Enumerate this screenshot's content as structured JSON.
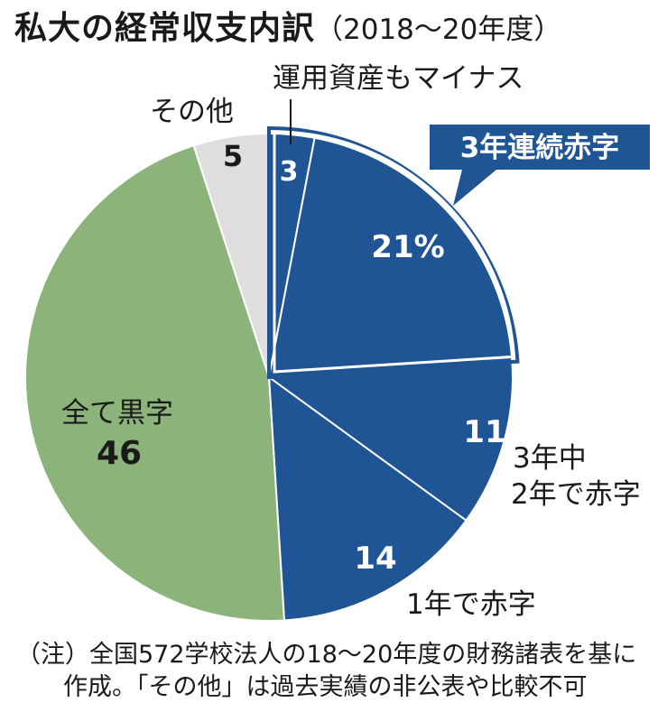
{
  "title": "私大の経常収支内訳",
  "subtitle": "（2018〜20年度）",
  "chart_data": {
    "type": "pie",
    "unit": "%",
    "slices": [
      {
        "label": "運用資産もマイナス",
        "value": 3,
        "value_label": "3",
        "group": "3年連続赤字",
        "color": "#1f5495"
      },
      {
        "label": "",
        "value": 21,
        "value_label": "21%",
        "group": "3年連続赤字",
        "color": "#1f5495"
      },
      {
        "label": "3年中2年で赤字",
        "value": 11,
        "value_label": "11",
        "color": "#1f5495"
      },
      {
        "label": "1年で赤字",
        "value": 14,
        "value_label": "14",
        "color": "#1f5495"
      },
      {
        "label": "全て黒字",
        "value": 46,
        "value_label": "46",
        "color": "#8cb47a"
      },
      {
        "label": "その他",
        "value": 5,
        "value_label": "5",
        "color": "#dedede"
      }
    ],
    "callout": {
      "text": "3年連続赤字",
      "color": "#1f5495"
    },
    "label_lines": {
      "slice2": [
        "3年中",
        "2年で赤字"
      ]
    }
  },
  "note": {
    "line1": "（注）全国572学校法人の18〜20年度の財務諸表を基に",
    "line2": "作成。「その他」は過去実績の非公表や比較不可"
  }
}
